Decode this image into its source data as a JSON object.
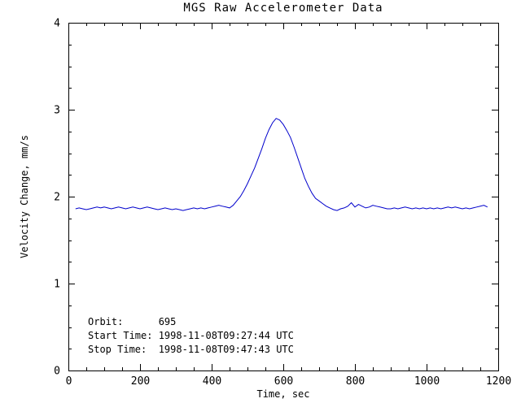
{
  "page": {
    "background": "#ffffff"
  },
  "chart_data": {
    "type": "line",
    "title": "MGS Raw Accelerometer Data",
    "xlabel": "Time, sec",
    "ylabel": "Velocity Change, mm/s",
    "xlim": [
      0,
      1200
    ],
    "ylim": [
      0,
      4
    ],
    "xticks": [
      0,
      200,
      400,
      600,
      800,
      1000,
      1200
    ],
    "yticks": [
      0,
      1,
      2,
      3,
      4
    ],
    "x_minor_interval": 50,
    "y_minor_interval": 0.25,
    "grid": false,
    "legend": "none",
    "line_color": "#0000cc",
    "axis_color": "#000000",
    "annotations": [
      "Orbit:      695",
      "Start Time: 1998-11-08T09:27:44 UTC",
      "Stop Time:  1998-11-08T09:47:43 UTC"
    ],
    "series": [
      {
        "name": "velocity_change",
        "x": [
          20,
          30,
          40,
          50,
          60,
          70,
          80,
          90,
          100,
          110,
          120,
          130,
          140,
          150,
          160,
          170,
          180,
          190,
          200,
          210,
          220,
          230,
          240,
          250,
          260,
          270,
          280,
          290,
          300,
          310,
          320,
          330,
          340,
          350,
          360,
          370,
          380,
          390,
          400,
          410,
          420,
          430,
          440,
          450,
          460,
          470,
          480,
          490,
          500,
          510,
          520,
          530,
          540,
          550,
          560,
          570,
          580,
          590,
          600,
          610,
          620,
          630,
          640,
          650,
          660,
          670,
          680,
          690,
          700,
          710,
          720,
          730,
          740,
          750,
          760,
          770,
          780,
          790,
          800,
          810,
          820,
          830,
          840,
          850,
          860,
          870,
          880,
          890,
          900,
          910,
          920,
          930,
          940,
          950,
          960,
          970,
          980,
          990,
          1000,
          1010,
          1020,
          1030,
          1040,
          1050,
          1060,
          1070,
          1080,
          1090,
          1100,
          1110,
          1120,
          1130,
          1140,
          1150,
          1160,
          1170
        ],
        "y": [
          1.86,
          1.87,
          1.86,
          1.85,
          1.86,
          1.87,
          1.88,
          1.87,
          1.88,
          1.87,
          1.86,
          1.87,
          1.88,
          1.87,
          1.86,
          1.87,
          1.88,
          1.87,
          1.86,
          1.87,
          1.88,
          1.87,
          1.86,
          1.85,
          1.86,
          1.87,
          1.86,
          1.85,
          1.86,
          1.85,
          1.84,
          1.85,
          1.86,
          1.87,
          1.86,
          1.87,
          1.86,
          1.87,
          1.88,
          1.89,
          1.9,
          1.89,
          1.88,
          1.87,
          1.9,
          1.95,
          2.0,
          2.07,
          2.15,
          2.24,
          2.33,
          2.44,
          2.55,
          2.67,
          2.77,
          2.85,
          2.9,
          2.88,
          2.83,
          2.76,
          2.68,
          2.57,
          2.45,
          2.33,
          2.21,
          2.12,
          2.04,
          1.98,
          1.95,
          1.92,
          1.89,
          1.87,
          1.85,
          1.84,
          1.86,
          1.87,
          1.89,
          1.93,
          1.88,
          1.91,
          1.89,
          1.87,
          1.88,
          1.9,
          1.89,
          1.88,
          1.87,
          1.86,
          1.86,
          1.87,
          1.86,
          1.87,
          1.88,
          1.87,
          1.86,
          1.87,
          1.86,
          1.87,
          1.86,
          1.87,
          1.86,
          1.87,
          1.86,
          1.87,
          1.88,
          1.87,
          1.88,
          1.87,
          1.86,
          1.87,
          1.86,
          1.87,
          1.88,
          1.89,
          1.9,
          1.88
        ]
      }
    ]
  }
}
